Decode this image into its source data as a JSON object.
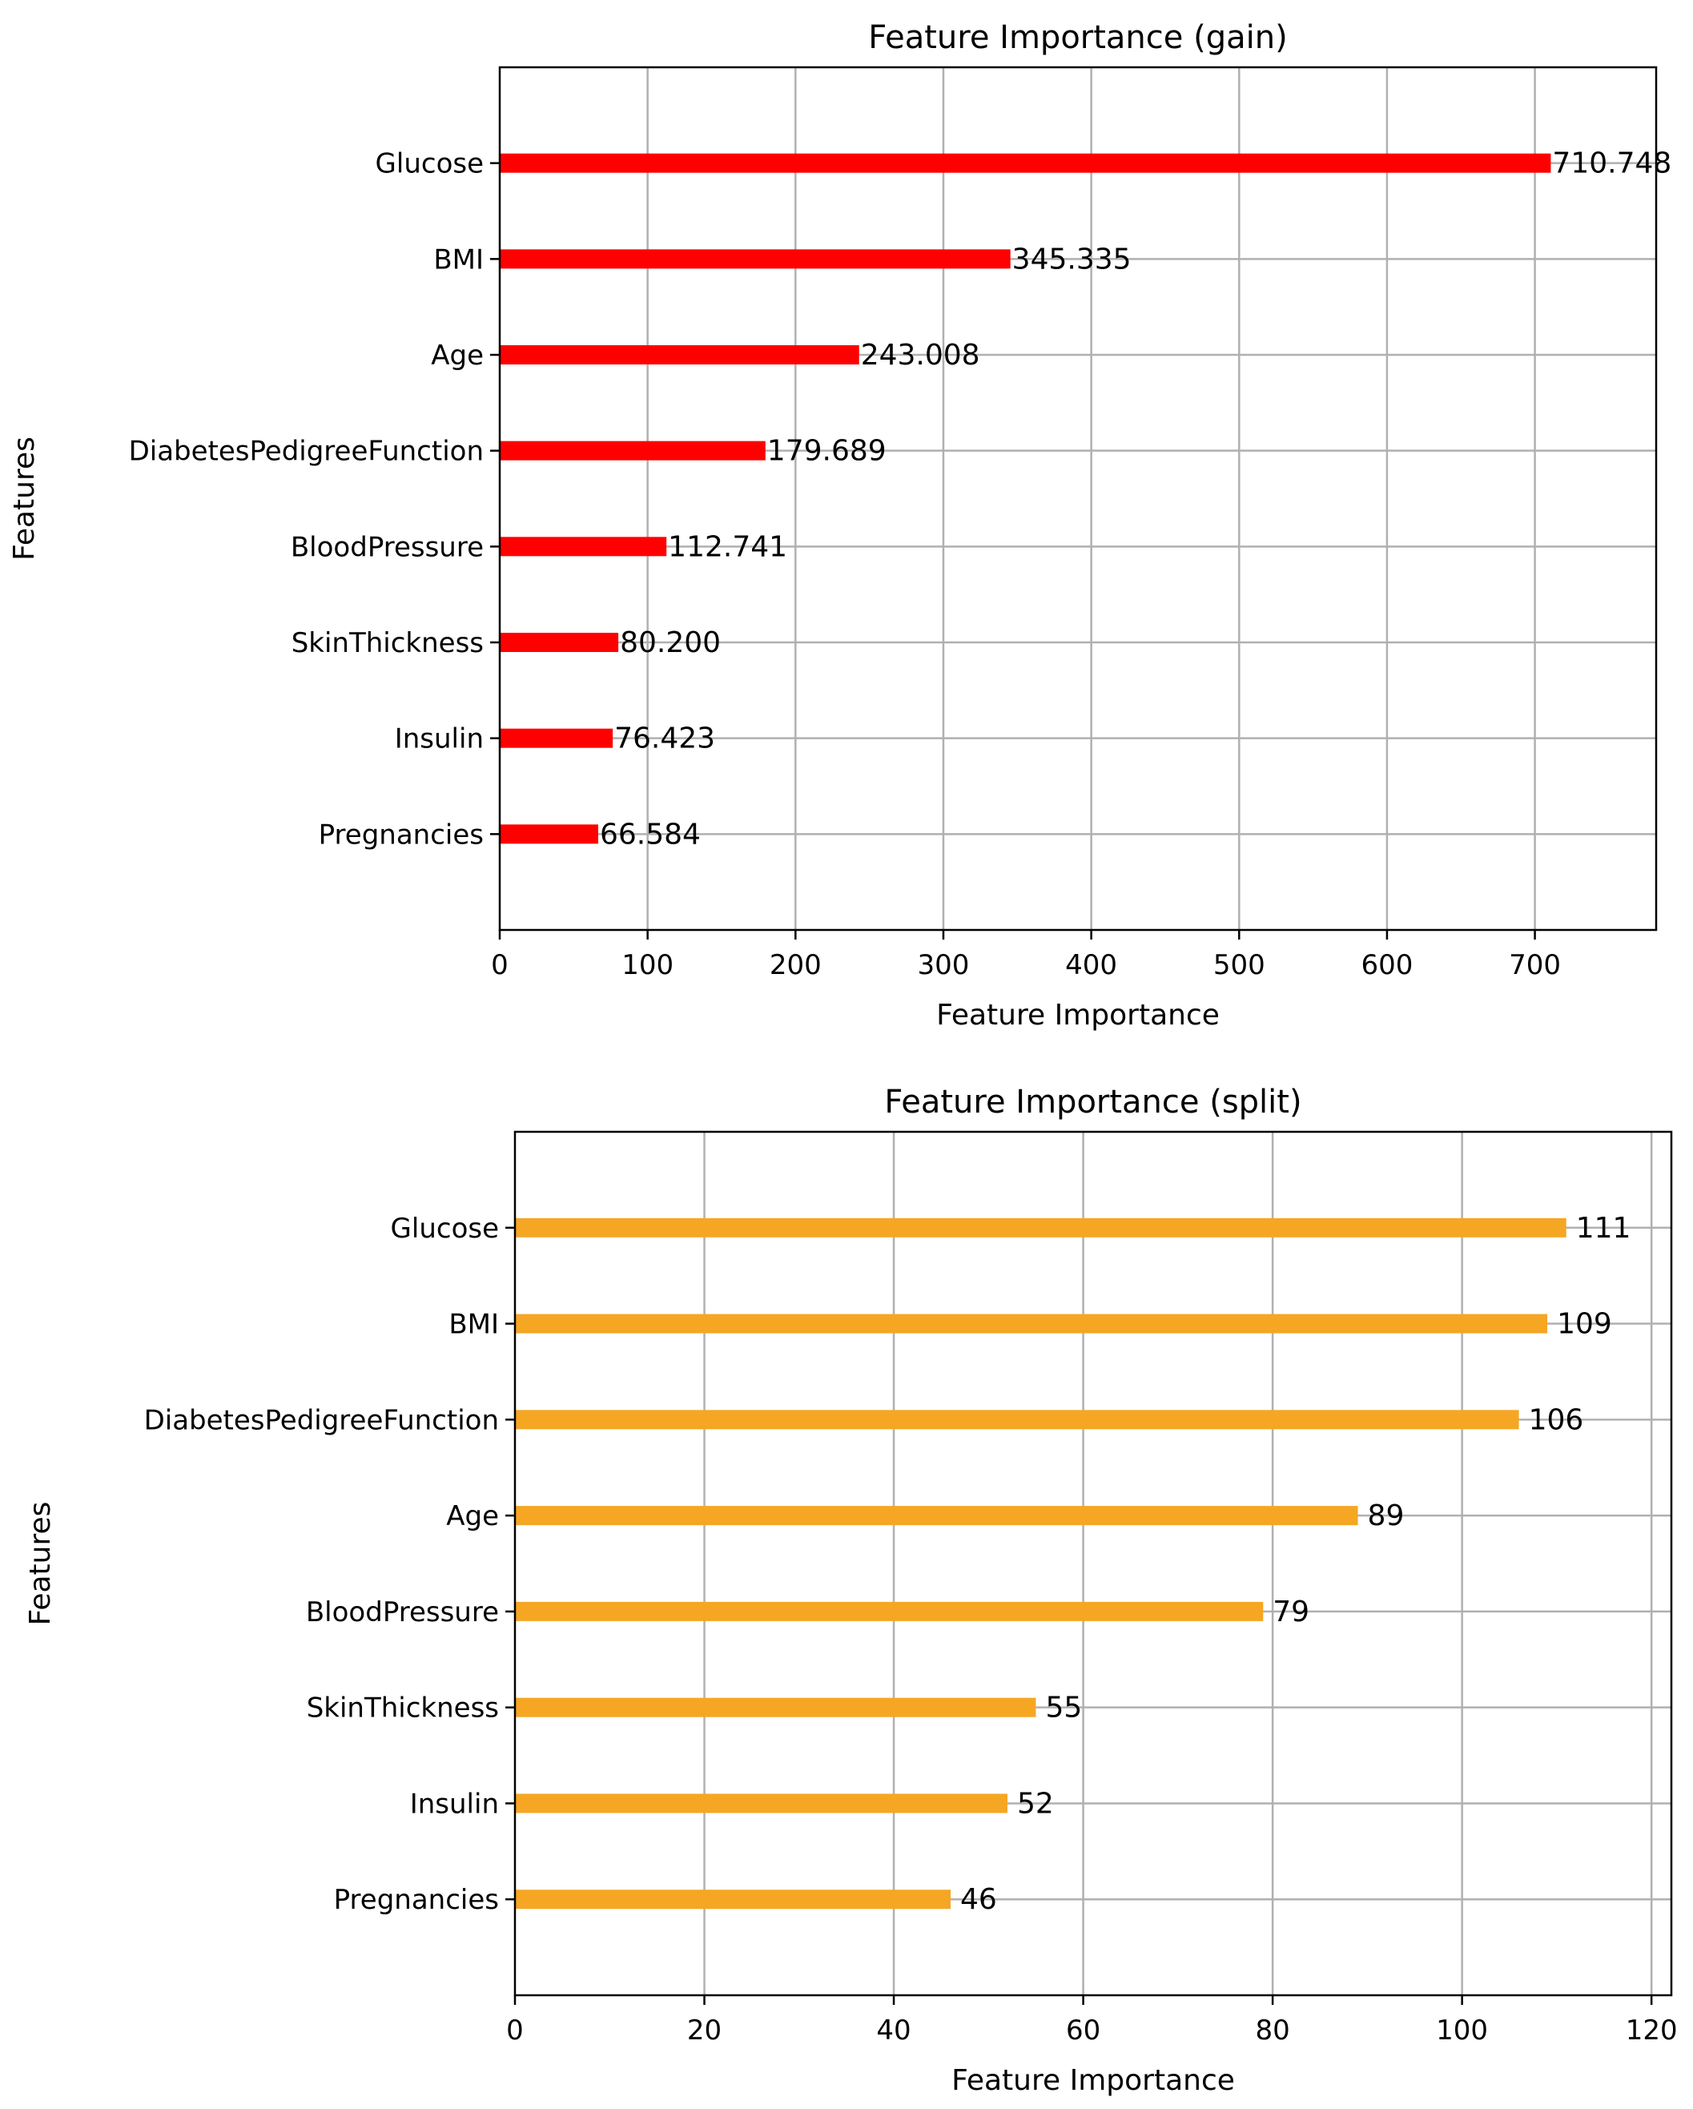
{
  "chart_data": [
    {
      "type": "bar",
      "orientation": "horizontal",
      "title": "Feature Importance (gain)",
      "xlabel": "Feature Importance",
      "ylabel": "Features",
      "color": "#ff0000",
      "grid": true,
      "xlim": [
        0,
        782
      ],
      "xticks": [
        0,
        100,
        200,
        300,
        400,
        500,
        600,
        700
      ],
      "xtick_labels": [
        "0",
        "100",
        "200",
        "300",
        "400",
        "500",
        "600",
        "700"
      ],
      "categories": [
        "Glucose",
        "BMI",
        "Age",
        "DiabetesPedigreeFunction",
        "BloodPressure",
        "SkinThickness",
        "Insulin",
        "Pregnancies"
      ],
      "values": [
        710.748,
        345.335,
        243.008,
        179.689,
        112.741,
        80.2,
        76.423,
        66.584
      ],
      "value_labels": [
        "710.748",
        "345.335",
        "243.008",
        "179.689",
        "112.741",
        "80.200",
        "76.423",
        "66.584"
      ]
    },
    {
      "type": "bar",
      "orientation": "horizontal",
      "title": "Feature Importance (split)",
      "xlabel": "Feature Importance",
      "ylabel": "Features",
      "color": "#f5a623",
      "grid": true,
      "xlim": [
        0,
        122.1
      ],
      "xticks": [
        0,
        20,
        40,
        60,
        80,
        100,
        120
      ],
      "xtick_labels": [
        "0",
        "20",
        "40",
        "60",
        "80",
        "100",
        "120"
      ],
      "categories": [
        "Glucose",
        "BMI",
        "DiabetesPedigreeFunction",
        "Age",
        "BloodPressure",
        "SkinThickness",
        "Insulin",
        "Pregnancies"
      ],
      "values": [
        111,
        109,
        106,
        89,
        79,
        55,
        52,
        46
      ],
      "value_labels": [
        "111",
        "109",
        "106",
        "89",
        "79",
        "55",
        "52",
        "46"
      ]
    }
  ]
}
